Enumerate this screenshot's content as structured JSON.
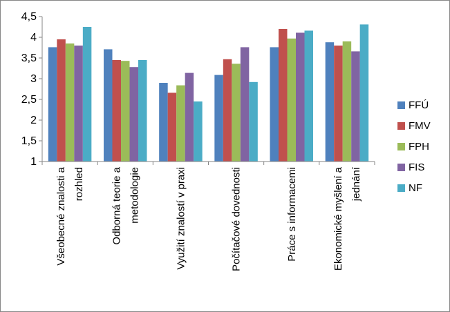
{
  "chart_data": {
    "type": "bar",
    "title": "",
    "xlabel": "",
    "ylabel": "",
    "ylim": [
      1,
      4.5
    ],
    "yticks": [
      "1",
      "1,5",
      "2",
      "2,5",
      "3",
      "3,5",
      "4",
      "4,5"
    ],
    "grid": false,
    "legend_position": "right",
    "categories": [
      [
        "Všeobecné znalosti a",
        "rozhled"
      ],
      [
        "Odborná teorie a",
        "metodologie"
      ],
      [
        "Využití znalostí v praxi"
      ],
      [
        "Počítačové dovednosti"
      ],
      [
        "Práce s informacemi"
      ],
      [
        "Ekonomické myšlení a",
        "jednání"
      ]
    ],
    "series": [
      {
        "name": "FFÚ",
        "color": "#4F81BD",
        "values": [
          3.76,
          3.71,
          2.9,
          3.09,
          3.76,
          3.88
        ]
      },
      {
        "name": "FMV",
        "color": "#C0504D",
        "values": [
          3.95,
          3.45,
          2.66,
          3.47,
          4.2,
          3.8
        ]
      },
      {
        "name": "FPH",
        "color": "#9BBB59",
        "values": [
          3.85,
          3.43,
          2.84,
          3.36,
          3.97,
          3.9
        ]
      },
      {
        "name": "FIS",
        "color": "#8064A2",
        "values": [
          3.8,
          3.28,
          3.14,
          3.76,
          4.11,
          3.66
        ]
      },
      {
        "name": "NF",
        "color": "#4BACC6",
        "values": [
          4.25,
          3.45,
          2.45,
          2.92,
          4.16,
          4.31
        ]
      }
    ]
  }
}
